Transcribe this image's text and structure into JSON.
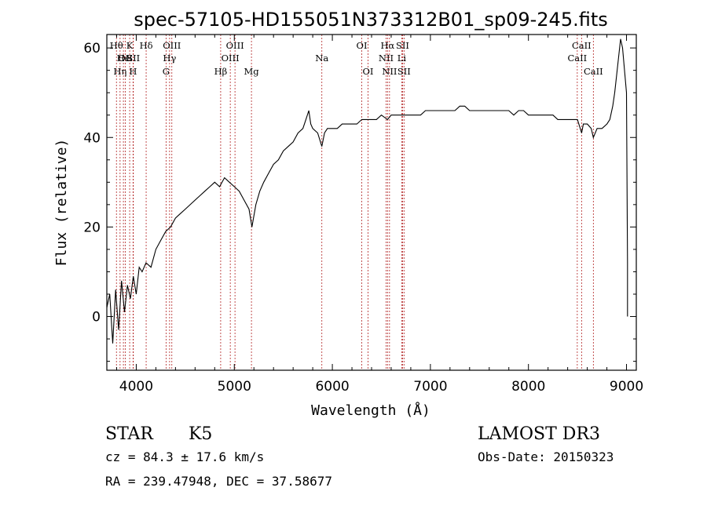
{
  "chart_data": {
    "type": "line",
    "title": "spec-57105-HD155051N373312B01_sp09-245.fits",
    "xlabel": "Wavelength (Å)",
    "ylabel": "Flux (relative)",
    "xlim": [
      3700,
      9100
    ],
    "ylim": [
      -12,
      63
    ],
    "x_ticks": [
      4000,
      5000,
      6000,
      7000,
      8000,
      9000
    ],
    "y_ticks": [
      0,
      20,
      40,
      60
    ],
    "grid": false,
    "series": [
      {
        "name": "spectrum",
        "points": [
          [
            3700,
            2
          ],
          [
            3730,
            5
          ],
          [
            3760,
            -6
          ],
          [
            3790,
            6
          ],
          [
            3820,
            -3
          ],
          [
            3850,
            8
          ],
          [
            3880,
            1
          ],
          [
            3910,
            7
          ],
          [
            3940,
            4
          ],
          [
            3970,
            9
          ],
          [
            4000,
            5
          ],
          [
            4030,
            11
          ],
          [
            4060,
            10
          ],
          [
            4100,
            12
          ],
          [
            4150,
            11
          ],
          [
            4200,
            15
          ],
          [
            4250,
            17
          ],
          [
            4300,
            19
          ],
          [
            4350,
            20
          ],
          [
            4400,
            22
          ],
          [
            4450,
            23
          ],
          [
            4500,
            24
          ],
          [
            4550,
            25
          ],
          [
            4600,
            26
          ],
          [
            4650,
            27
          ],
          [
            4700,
            28
          ],
          [
            4750,
            29
          ],
          [
            4800,
            30
          ],
          [
            4850,
            29
          ],
          [
            4900,
            31
          ],
          [
            4950,
            30
          ],
          [
            5000,
            29
          ],
          [
            5050,
            28
          ],
          [
            5100,
            26
          ],
          [
            5150,
            24
          ],
          [
            5180,
            20
          ],
          [
            5220,
            25
          ],
          [
            5260,
            28
          ],
          [
            5300,
            30
          ],
          [
            5350,
            32
          ],
          [
            5400,
            34
          ],
          [
            5450,
            35
          ],
          [
            5500,
            37
          ],
          [
            5550,
            38
          ],
          [
            5600,
            39
          ],
          [
            5650,
            41
          ],
          [
            5700,
            42
          ],
          [
            5730,
            44
          ],
          [
            5760,
            46
          ],
          [
            5780,
            43
          ],
          [
            5800,
            42
          ],
          [
            5850,
            41
          ],
          [
            5893,
            38
          ],
          [
            5920,
            41
          ],
          [
            5950,
            42
          ],
          [
            6000,
            42
          ],
          [
            6050,
            42
          ],
          [
            6100,
            43
          ],
          [
            6150,
            43
          ],
          [
            6200,
            43
          ],
          [
            6250,
            43
          ],
          [
            6300,
            44
          ],
          [
            6350,
            44
          ],
          [
            6400,
            44
          ],
          [
            6450,
            44
          ],
          [
            6500,
            45
          ],
          [
            6563,
            44
          ],
          [
            6600,
            45
          ],
          [
            6650,
            45
          ],
          [
            6700,
            45
          ],
          [
            6750,
            45
          ],
          [
            6800,
            45
          ],
          [
            6850,
            45
          ],
          [
            6900,
            45
          ],
          [
            6950,
            46
          ],
          [
            7000,
            46
          ],
          [
            7050,
            46
          ],
          [
            7100,
            46
          ],
          [
            7150,
            46
          ],
          [
            7200,
            46
          ],
          [
            7250,
            46
          ],
          [
            7300,
            47
          ],
          [
            7350,
            47
          ],
          [
            7400,
            46
          ],
          [
            7450,
            46
          ],
          [
            7500,
            46
          ],
          [
            7550,
            46
          ],
          [
            7600,
            46
          ],
          [
            7650,
            46
          ],
          [
            7700,
            46
          ],
          [
            7750,
            46
          ],
          [
            7800,
            46
          ],
          [
            7850,
            45
          ],
          [
            7900,
            46
          ],
          [
            7950,
            46
          ],
          [
            8000,
            45
          ],
          [
            8050,
            45
          ],
          [
            8100,
            45
          ],
          [
            8150,
            45
          ],
          [
            8200,
            45
          ],
          [
            8250,
            45
          ],
          [
            8300,
            44
          ],
          [
            8350,
            44
          ],
          [
            8400,
            44
          ],
          [
            8450,
            44
          ],
          [
            8500,
            44
          ],
          [
            8542,
            41
          ],
          [
            8560,
            43
          ],
          [
            8600,
            43
          ],
          [
            8640,
            42
          ],
          [
            8662,
            40
          ],
          [
            8700,
            42
          ],
          [
            8750,
            42
          ],
          [
            8800,
            43
          ],
          [
            8830,
            44
          ],
          [
            8860,
            47
          ],
          [
            8880,
            50
          ],
          [
            8900,
            54
          ],
          [
            8920,
            58
          ],
          [
            8940,
            62
          ],
          [
            8960,
            60
          ],
          [
            8980,
            55
          ],
          [
            9000,
            50
          ],
          [
            9010,
            12
          ],
          [
            9010,
            0
          ]
        ]
      }
    ],
    "spectral_lines": [
      {
        "wavelength": 3798,
        "label": "Hθ",
        "row": 0
      },
      {
        "wavelength": 3835,
        "label": "Hη",
        "row": 2
      },
      {
        "wavelength": 3869,
        "label": "He",
        "row": 1
      },
      {
        "wavelength": 3889,
        "label": "OII",
        "row": 1
      },
      {
        "wavelength": 3933,
        "label": "K",
        "row": 0
      },
      {
        "wavelength": 3968,
        "label": "H",
        "row": 2
      },
      {
        "wavelength": 3970,
        "label": "SII",
        "row": 1
      },
      {
        "wavelength": 4101,
        "label": "Hδ",
        "row": 0
      },
      {
        "wavelength": 4304,
        "label": "G",
        "row": 2
      },
      {
        "wavelength": 4340,
        "label": "Hγ",
        "row": 1
      },
      {
        "wavelength": 4363,
        "label": "OIII",
        "row": 0
      },
      {
        "wavelength": 4861,
        "label": "Hβ",
        "row": 2
      },
      {
        "wavelength": 4959,
        "label": "OIII",
        "row": 1
      },
      {
        "wavelength": 5007,
        "label": "OIII",
        "row": 0
      },
      {
        "wavelength": 5175,
        "label": "Mg",
        "row": 2
      },
      {
        "wavelength": 5893,
        "label": "Na",
        "row": 1
      },
      {
        "wavelength": 6300,
        "label": "OI",
        "row": 0
      },
      {
        "wavelength": 6364,
        "label": "OI",
        "row": 2
      },
      {
        "wavelength": 6548,
        "label": "NII",
        "row": 1
      },
      {
        "wavelength": 6563,
        "label": "Hα",
        "row": 0
      },
      {
        "wavelength": 6583,
        "label": "NII",
        "row": 2
      },
      {
        "wavelength": 6708,
        "label": "Li",
        "row": 1
      },
      {
        "wavelength": 6716,
        "label": "SII",
        "row": 0
      },
      {
        "wavelength": 6731,
        "label": "SII",
        "row": 2
      },
      {
        "wavelength": 8498,
        "label": "CaII",
        "row": 1
      },
      {
        "wavelength": 8542,
        "label": "CaII",
        "row": 0
      },
      {
        "wavelength": 8662,
        "label": "CaII",
        "row": 2
      }
    ]
  },
  "info": {
    "class_label": "STAR",
    "subclass": "K5",
    "survey": "LAMOST DR3",
    "redshift": "cz = 84.3 ± 17.6 km/s",
    "obs_date": "Obs-Date: 20150323",
    "coordinates": "RA = 239.47948, DEC =  37.58677"
  },
  "colors": {
    "spectrum": "#000000",
    "line_marker": "#b22222",
    "axis": "#000000"
  }
}
